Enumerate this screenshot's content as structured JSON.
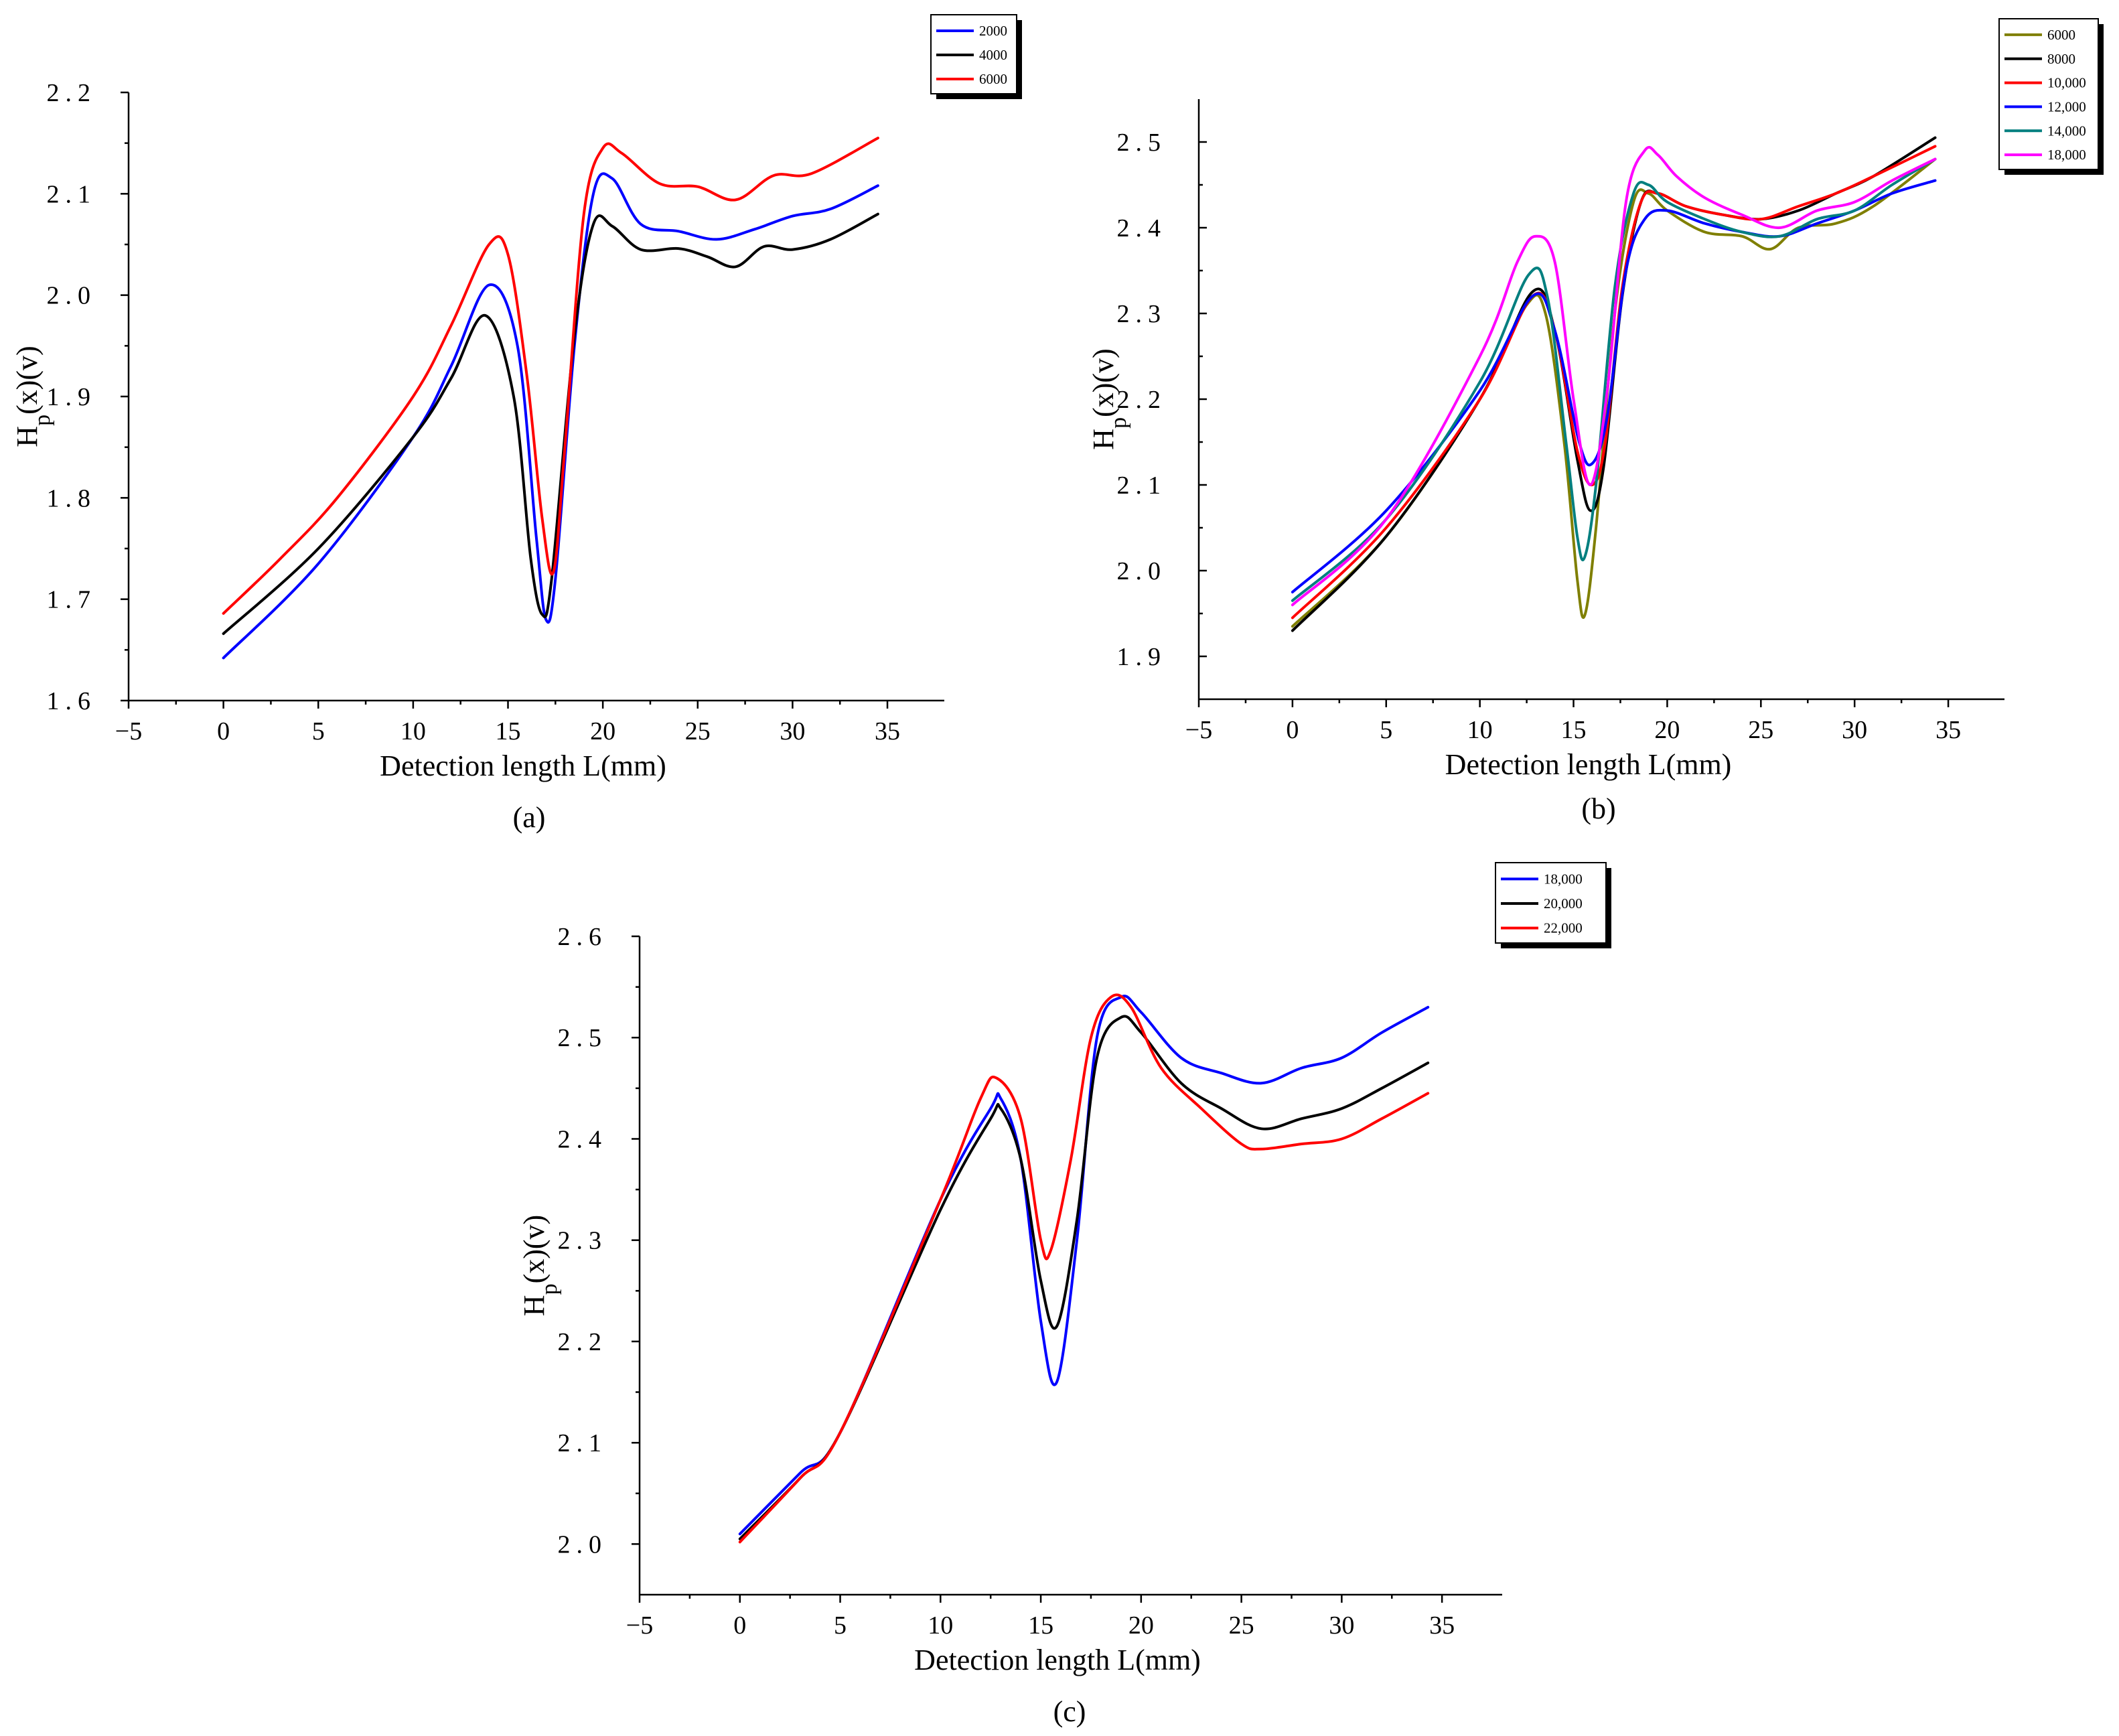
{
  "figure": {
    "panels": [
      "(a)",
      "(b)",
      "(c)"
    ]
  },
  "chart_data": [
    {
      "type": "line",
      "caption": "(a)",
      "xlabel": "Detection length L(mm)",
      "ylabel_main": "H",
      "ylabel_sub": "p",
      "ylabel_tail": "(x)(v)",
      "xlim": [
        -5,
        38
      ],
      "ylim": [
        1.6,
        2.2
      ],
      "xticks": [
        -5,
        0,
        5,
        10,
        15,
        20,
        25,
        30,
        35
      ],
      "yticks": [
        1.6,
        1.7,
        1.8,
        1.9,
        2.0,
        2.1,
        2.2
      ],
      "xtick_labels": [
        "−5",
        "0",
        "5",
        "10",
        "15",
        "20",
        "25",
        "30",
        "35"
      ],
      "ytick_labels": [
        "1.6",
        "1.7",
        "1.8",
        "1.9",
        "2.0",
        "2.1",
        "2.2"
      ],
      "legend_position": "top-right",
      "series": [
        {
          "name": "2000",
          "color": "#0000ff",
          "x": [
            0,
            5,
            10,
            12,
            14,
            15.5,
            16.5,
            17,
            17.5,
            18.5,
            19.5,
            20.5,
            22,
            24,
            26,
            28,
            30,
            32,
            34.5
          ],
          "y": [
            1.642,
            1.735,
            1.86,
            1.93,
            2.01,
            1.95,
            1.76,
            1.68,
            1.72,
            1.95,
            2.1,
            2.115,
            2.07,
            2.063,
            2.055,
            2.065,
            2.078,
            2.085,
            2.108
          ]
        },
        {
          "name": "4000",
          "color": "#000000",
          "x": [
            0,
            5,
            10,
            12,
            13.8,
            15.3,
            16.2,
            16.8,
            17.3,
            18.5,
            19.5,
            20.5,
            22,
            24,
            25.5,
            27,
            28.5,
            30,
            32,
            34.5
          ],
          "y": [
            1.666,
            1.75,
            1.86,
            1.918,
            1.98,
            1.9,
            1.74,
            1.685,
            1.72,
            1.96,
            2.07,
            2.068,
            2.045,
            2.046,
            2.038,
            2.028,
            2.048,
            2.045,
            2.055,
            2.08
          ]
        },
        {
          "name": "6000",
          "color": "#ff0000",
          "x": [
            0,
            3,
            6,
            10,
            12,
            14,
            15,
            16,
            16.8,
            17.4,
            18,
            19,
            20,
            21,
            23,
            25,
            27,
            29,
            31,
            34.5
          ],
          "y": [
            1.686,
            1.74,
            1.8,
            1.9,
            1.97,
            2.05,
            2.04,
            1.92,
            1.78,
            1.727,
            1.85,
            2.08,
            2.145,
            2.14,
            2.11,
            2.107,
            2.094,
            2.118,
            2.12,
            2.155
          ]
        }
      ]
    },
    {
      "type": "line",
      "caption": "(b)",
      "xlabel": "Detection length L(mm)",
      "ylabel_main": "H",
      "ylabel_sub": "p",
      "ylabel_tail": "(x)(v)",
      "xlim": [
        -5,
        38
      ],
      "ylim": [
        1.85,
        2.55
      ],
      "xticks": [
        -5,
        0,
        5,
        10,
        15,
        20,
        25,
        30,
        35
      ],
      "yticks": [
        1.9,
        2.0,
        2.1,
        2.2,
        2.3,
        2.4,
        2.5
      ],
      "xtick_labels": [
        "−5",
        "0",
        "5",
        "10",
        "15",
        "20",
        "25",
        "30",
        "35"
      ],
      "ytick_labels": [
        "1.9",
        "2.0",
        "2.1",
        "2.2",
        "2.3",
        "2.4",
        "2.5"
      ],
      "legend_position": "top-right",
      "series": [
        {
          "name": "6000",
          "color": "#7f7f00",
          "x": [
            0,
            5,
            10,
            12.5,
            13.5,
            14.5,
            15.2,
            15.6,
            16.2,
            17.2,
            18.2,
            19,
            20,
            22,
            24,
            25.5,
            27,
            29,
            31,
            34.3
          ],
          "y": [
            1.935,
            2.04,
            2.2,
            2.31,
            2.3,
            2.15,
            1.99,
            1.948,
            2.05,
            2.3,
            2.43,
            2.44,
            2.42,
            2.395,
            2.39,
            2.375,
            2.4,
            2.405,
            2.425,
            2.48
          ]
        },
        {
          "name": "8000",
          "color": "#000000",
          "x": [
            0,
            5,
            10,
            12.8,
            14,
            15.2,
            15.9,
            16.6,
            17.6,
            18.6,
            19.5,
            21,
            23,
            25,
            27,
            29,
            31,
            34.3
          ],
          "y": [
            1.93,
            2.04,
            2.2,
            2.325,
            2.28,
            2.13,
            2.07,
            2.12,
            2.32,
            2.43,
            2.44,
            2.425,
            2.415,
            2.41,
            2.42,
            2.44,
            2.46,
            2.505
          ]
        },
        {
          "name": "10,000",
          "color": "#ff0000",
          "x": [
            0,
            5,
            10,
            12.8,
            14,
            15.2,
            16,
            16.7,
            17.6,
            18.6,
            19.5,
            21,
            23,
            25,
            27,
            29,
            31,
            34.3
          ],
          "y": [
            1.945,
            2.05,
            2.2,
            2.32,
            2.28,
            2.14,
            2.1,
            2.15,
            2.33,
            2.43,
            2.44,
            2.425,
            2.415,
            2.41,
            2.425,
            2.44,
            2.46,
            2.495
          ]
        },
        {
          "name": "12,000",
          "color": "#0000ff",
          "x": [
            0,
            5,
            10,
            12.8,
            14,
            15.3,
            16,
            16.8,
            17.8,
            18.8,
            20,
            22,
            24,
            26,
            28,
            30,
            32,
            34.3
          ],
          "y": [
            1.975,
            2.07,
            2.21,
            2.32,
            2.28,
            2.15,
            2.125,
            2.18,
            2.35,
            2.41,
            2.42,
            2.405,
            2.395,
            2.39,
            2.405,
            2.42,
            2.44,
            2.455
          ]
        },
        {
          "name": "14,000",
          "color": "#007f7f",
          "x": [
            0,
            5,
            10,
            12.6,
            13.6,
            14.6,
            15.2,
            15.6,
            16.2,
            17.2,
            18.2,
            19,
            20,
            22,
            24,
            26,
            28,
            30,
            32,
            34.3
          ],
          "y": [
            1.965,
            2.06,
            2.22,
            2.345,
            2.32,
            2.15,
            2.04,
            2.016,
            2.1,
            2.33,
            2.44,
            2.45,
            2.43,
            2.41,
            2.395,
            2.39,
            2.41,
            2.42,
            2.45,
            2.48
          ]
        },
        {
          "name": "18,000",
          "color": "#ff00ff",
          "x": [
            0,
            5,
            10,
            12,
            13,
            14,
            15,
            15.9,
            16.8,
            17.8,
            18.8,
            19.5,
            20.5,
            22,
            24,
            26,
            28,
            30,
            32,
            34.3
          ],
          "y": [
            1.96,
            2.06,
            2.25,
            2.36,
            2.39,
            2.36,
            2.2,
            2.1,
            2.21,
            2.43,
            2.49,
            2.485,
            2.46,
            2.435,
            2.415,
            2.4,
            2.42,
            2.43,
            2.455,
            2.48
          ]
        }
      ]
    },
    {
      "type": "line",
      "caption": "(c)",
      "xlabel": "Detection length L(mm)",
      "ylabel_main": "H",
      "ylabel_sub": "p",
      "ylabel_tail": "(x)(v)",
      "xlim": [
        -5,
        38
      ],
      "ylim": [
        1.95,
        2.6
      ],
      "xticks": [
        -5,
        0,
        5,
        10,
        15,
        20,
        25,
        30,
        35
      ],
      "yticks": [
        2.0,
        2.1,
        2.2,
        2.3,
        2.4,
        2.5,
        2.6
      ],
      "xtick_labels": [
        "−5",
        "0",
        "5",
        "10",
        "15",
        "20",
        "25",
        "30",
        "35"
      ],
      "ytick_labels": [
        "2.0",
        "2.1",
        "2.2",
        "2.3",
        "2.4",
        "2.5",
        "2.6"
      ],
      "legend_position": "top-right",
      "series": [
        {
          "name": "18,000",
          "color": "#0000ff",
          "x": [
            0,
            3,
            5,
            10,
            12.5,
            13,
            14,
            15,
            15.8,
            16.8,
            17.8,
            19,
            20,
            22,
            24,
            26,
            28,
            30,
            32,
            34.3
          ],
          "y": [
            2.01,
            2.07,
            2.11,
            2.34,
            2.43,
            2.44,
            2.38,
            2.22,
            2.16,
            2.3,
            2.5,
            2.54,
            2.525,
            2.48,
            2.465,
            2.455,
            2.47,
            2.48,
            2.505,
            2.53
          ]
        },
        {
          "name": "20,000",
          "color": "#000000",
          "x": [
            0,
            3,
            5,
            10,
            12.5,
            13,
            14,
            15,
            15.8,
            16.8,
            17.8,
            19,
            20,
            22,
            24,
            26,
            28,
            30,
            32,
            34.3
          ],
          "y": [
            2.005,
            2.065,
            2.11,
            2.33,
            2.42,
            2.43,
            2.38,
            2.26,
            2.215,
            2.32,
            2.48,
            2.52,
            2.505,
            2.455,
            2.43,
            2.41,
            2.42,
            2.43,
            2.45,
            2.475
          ]
        },
        {
          "name": "22,000",
          "color": "#ff0000",
          "x": [
            0,
            3,
            5,
            10,
            12,
            12.8,
            14,
            15,
            15.5,
            16.5,
            17.5,
            18.5,
            19.5,
            21,
            23,
            25,
            26,
            28,
            30,
            32,
            34.3
          ],
          "y": [
            2.002,
            2.065,
            2.11,
            2.34,
            2.44,
            2.46,
            2.42,
            2.3,
            2.29,
            2.38,
            2.5,
            2.54,
            2.53,
            2.47,
            2.43,
            2.395,
            2.39,
            2.395,
            2.4,
            2.42,
            2.445
          ]
        }
      ]
    }
  ]
}
